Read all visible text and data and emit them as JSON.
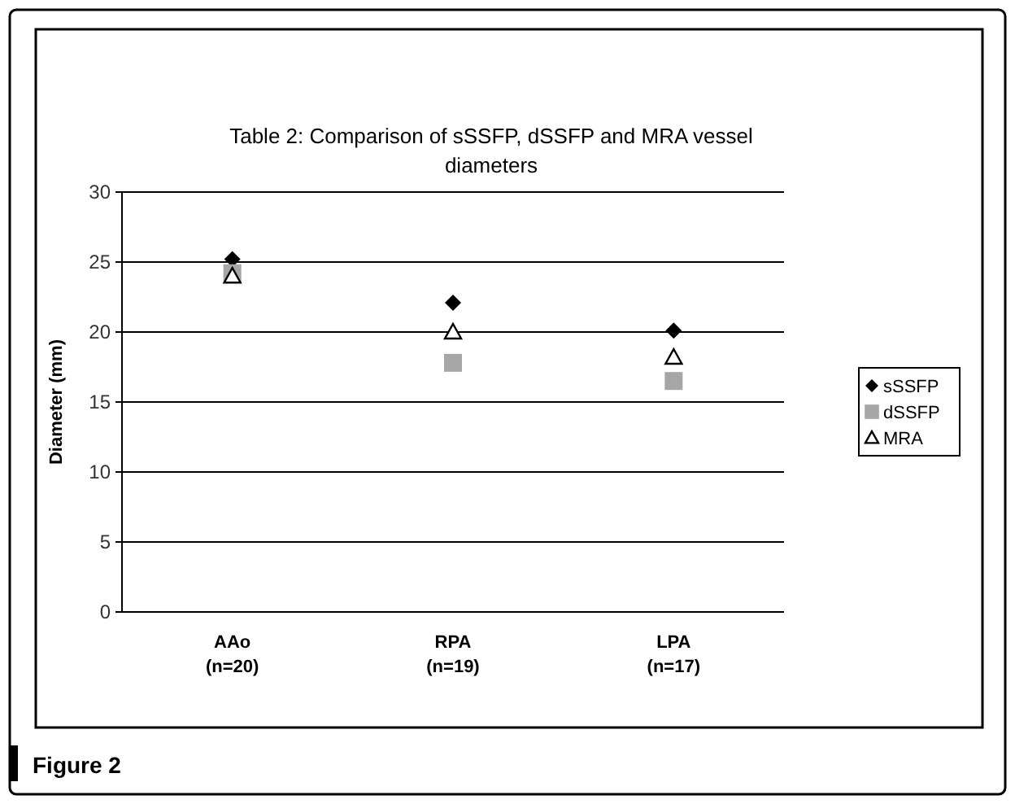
{
  "chart_data": {
    "type": "scatter",
    "title": "Table 2: Comparison of sSSFP, dSSFP and MRA vessel diameters",
    "ylabel": "Diameter (mm)",
    "categories": [
      "AAo\n(n=20)",
      "RPA\n(n=19)",
      "LPA\n(n=17)"
    ],
    "series": [
      {
        "name": "sSSFP",
        "color": "#000000",
        "marker": "diamond",
        "values": [
          25.2,
          22.1,
          20.1
        ]
      },
      {
        "name": "dSSFP",
        "color": "#a6a6a6",
        "marker": "square",
        "values": [
          24.2,
          17.8,
          16.5
        ]
      },
      {
        "name": "MRA",
        "color": "#000000",
        "marker": "triangle",
        "values": [
          24,
          20,
          18.2
        ]
      }
    ],
    "ylim": [
      0,
      30
    ],
    "yticks": [
      0,
      5,
      10,
      15,
      20,
      25,
      30
    ],
    "grid": "y",
    "legend": "right",
    "annotations": [
      "Figure 2"
    ]
  }
}
